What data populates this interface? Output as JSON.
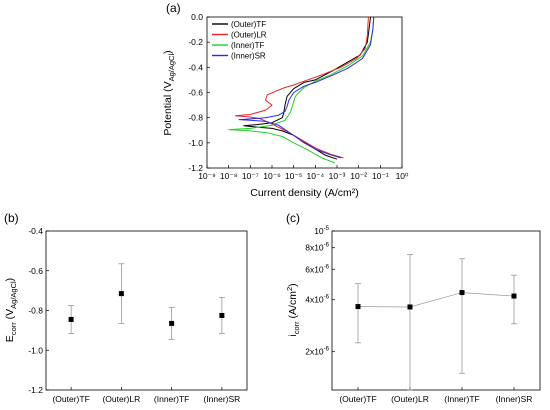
{
  "chart_data": [
    {
      "panel": "(a)",
      "type": "line",
      "xlabel": "Current density (A/cm²)",
      "ylabel": "Potential (V",
      "ylabel_sub": "Ag/AgCl",
      "ylabel_end": ")",
      "xscale": "log",
      "xlim": [
        1e-09,
        1
      ],
      "ylim": [
        -1.2,
        0.0
      ],
      "xtick_labels": [
        "10⁻⁹",
        "10⁻⁸",
        "10⁻⁷",
        "10⁻⁶",
        "10⁻⁵",
        "10⁻⁴",
        "10⁻³",
        "10⁻²",
        "10⁻¹",
        "10⁰"
      ],
      "yticks": [
        0.0,
        -0.2,
        -0.4,
        -0.6,
        -0.8,
        -1.0,
        -1.2
      ],
      "ytick_labels": [
        "0.0",
        "-0.2",
        "-0.4",
        "-0.6",
        "-0.8",
        "-1.0",
        "-1.2"
      ],
      "legend": "top-left",
      "grid": false,
      "series": [
        {
          "name": "(Outer)TF",
          "color": "#000000",
          "points": [
            [
              0.001,
              -1.13
            ],
            [
              0.0003,
              -1.1
            ],
            [
              0.0001,
              -1.05
            ],
            [
              3e-05,
              -0.99
            ],
            [
              1e-05,
              -0.94
            ],
            [
              3e-06,
              -0.905
            ],
            [
              1e-06,
              -0.885
            ],
            [
              2e-07,
              -0.875
            ],
            [
              5e-08,
              -0.865
            ],
            [
              2e-07,
              -0.855
            ],
            [
              1e-06,
              -0.84
            ],
            [
              3e-06,
              -0.8
            ],
            [
              3.5e-06,
              -0.76
            ],
            [
              4e-06,
              -0.7
            ],
            [
              5e-06,
              -0.63
            ],
            [
              1e-05,
              -0.57
            ],
            [
              3e-05,
              -0.52
            ],
            [
              0.0001,
              -0.5
            ],
            [
              0.0006,
              -0.43
            ],
            [
              0.003,
              -0.36
            ],
            [
              0.012,
              -0.3
            ],
            [
              0.025,
              -0.2
            ],
            [
              0.03,
              -0.1
            ],
            [
              0.035,
              0.0
            ]
          ]
        },
        {
          "name": "(Outer)LR",
          "color": "#e8262a",
          "points": [
            [
              0.002,
              -1.12
            ],
            [
              0.0005,
              -1.09
            ],
            [
              0.0001,
              -1.04
            ],
            [
              2e-05,
              -0.97
            ],
            [
              5e-06,
              -0.91
            ],
            [
              1e-06,
              -0.85
            ],
            [
              3e-07,
              -0.81
            ],
            [
              1e-07,
              -0.795
            ],
            [
              2e-08,
              -0.785
            ],
            [
              1e-07,
              -0.775
            ],
            [
              5e-07,
              -0.74
            ],
            [
              1e-06,
              -0.7
            ],
            [
              5e-07,
              -0.66
            ],
            [
              6e-07,
              -0.62
            ],
            [
              1.5e-06,
              -0.59
            ],
            [
              4e-06,
              -0.56
            ],
            [
              1e-05,
              -0.54
            ],
            [
              3e-05,
              -0.51
            ],
            [
              0.0002,
              -0.46
            ],
            [
              0.0015,
              -0.4
            ],
            [
              0.008,
              -0.33
            ],
            [
              0.02,
              -0.25
            ],
            [
              0.025,
              -0.15
            ],
            [
              0.028,
              0.0
            ]
          ]
        },
        {
          "name": "(Inner)TF",
          "color": "#22d12a",
          "points": [
            [
              0.0008,
              -1.16
            ],
            [
              0.0002,
              -1.12
            ],
            [
              5e-05,
              -1.06
            ],
            [
              1e-05,
              -1.0
            ],
            [
              3e-06,
              -0.95
            ],
            [
              6e-07,
              -0.92
            ],
            [
              1e-07,
              -0.905
            ],
            [
              1e-08,
              -0.895
            ],
            [
              1e-07,
              -0.885
            ],
            [
              1e-06,
              -0.86
            ],
            [
              4e-06,
              -0.82
            ],
            [
              7e-06,
              -0.76
            ],
            [
              9e-06,
              -0.7
            ],
            [
              1.2e-05,
              -0.63
            ],
            [
              3e-05,
              -0.56
            ],
            [
              0.0001,
              -0.51
            ],
            [
              0.0005,
              -0.46
            ],
            [
              0.003,
              -0.39
            ],
            [
              0.015,
              -0.31
            ],
            [
              0.035,
              -0.2
            ],
            [
              0.045,
              -0.1
            ],
            [
              0.05,
              0.0
            ]
          ]
        },
        {
          "name": "(Inner)SR",
          "color": "#2a2ae8",
          "points": [
            [
              0.0015,
              -1.12
            ],
            [
              0.0004,
              -1.09
            ],
            [
              0.0001,
              -1.05
            ],
            [
              3e-05,
              -1.0
            ],
            [
              8e-06,
              -0.93
            ],
            [
              2e-06,
              -0.86
            ],
            [
              5e-07,
              -0.83
            ],
            [
              1e-07,
              -0.82
            ],
            [
              3e-08,
              -0.815
            ],
            [
              1e-07,
              -0.81
            ],
            [
              5e-07,
              -0.8
            ],
            [
              2e-06,
              -0.78
            ],
            [
              4e-06,
              -0.75
            ],
            [
              5e-06,
              -0.71
            ],
            [
              6e-06,
              -0.66
            ],
            [
              1e-05,
              -0.6
            ],
            [
              3e-05,
              -0.55
            ],
            [
              0.0001,
              -0.52
            ],
            [
              0.0005,
              -0.47
            ],
            [
              0.003,
              -0.41
            ],
            [
              0.015,
              -0.33
            ],
            [
              0.035,
              -0.22
            ],
            [
              0.045,
              -0.1
            ],
            [
              0.05,
              0.0
            ]
          ]
        }
      ]
    },
    {
      "panel": "(b)",
      "type": "scatter",
      "ylabel": "E",
      "ylabel_sub": "corr",
      "ylabel_mid": " (V",
      "ylabel_sub2": "Ag/AgCl",
      "ylabel_end": ")",
      "ylim": [
        -1.2,
        -0.4
      ],
      "yticks": [
        -0.4,
        -0.6,
        -0.8,
        -1.0,
        -1.2
      ],
      "ytick_labels": [
        "-0.4",
        "-0.6",
        "-0.8",
        "-1.0",
        "-1.2"
      ],
      "categories": [
        "(Outer)TF",
        "(Outer)LR",
        "(Inner)TF",
        "(Inner)SR"
      ],
      "values": [
        -0.845,
        -0.715,
        -0.865,
        -0.825
      ],
      "err_low": [
        -0.915,
        -0.865,
        -0.945,
        -0.915
      ],
      "err_high": [
        -0.775,
        -0.565,
        -0.785,
        -0.735
      ],
      "grid": false
    },
    {
      "panel": "(c)",
      "type": "line",
      "ylabel": "i",
      "ylabel_sub": "corr",
      "ylabel_mid": " (A/cm",
      "ylabel_sup": "2",
      "ylabel_end": ")",
      "yscale": "log",
      "ylim": [
        1.2e-06,
        1e-05
      ],
      "yticks": [
        1e-05,
        8e-06,
        6e-06,
        4e-06,
        2e-06
      ],
      "ytick_labels": [
        [
          "10",
          "-5"
        ],
        [
          "8x10",
          "-6"
        ],
        [
          "6x10",
          "-6"
        ],
        [
          "4x10",
          "-6"
        ],
        [
          "2x10",
          "-6"
        ]
      ],
      "categories": [
        "(Outer)TF",
        "(Outer)LR",
        "(Inner)TF",
        "(Inner)SR"
      ],
      "values": [
        3.65e-06,
        3.63e-06,
        4.4e-06,
        4.2e-06
      ],
      "err_low": [
        2.25e-06,
        1.2e-06,
        1.5e-06,
        2.9e-06
      ],
      "err_high": [
        4.95e-06,
        7.3e-06,
        6.9e-06,
        5.55e-06
      ],
      "grid": false
    }
  ]
}
